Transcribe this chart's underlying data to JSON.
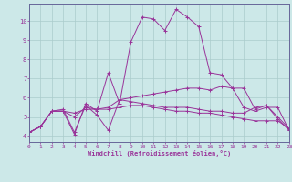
{
  "xlabel": "Windchill (Refroidissement éolien,°C)",
  "background_color": "#cce8e8",
  "grid_color": "#aacccc",
  "line_color": "#993399",
  "spine_color": "#666699",
  "xlim": [
    0,
    23
  ],
  "ylim": [
    3.7,
    10.9
  ],
  "xticks": [
    0,
    1,
    2,
    3,
    4,
    5,
    6,
    7,
    8,
    9,
    10,
    11,
    12,
    13,
    14,
    15,
    16,
    17,
    18,
    19,
    20,
    21,
    22,
    23
  ],
  "yticks": [
    4,
    5,
    6,
    7,
    8,
    9,
    10
  ],
  "lines": [
    {
      "x": [
        0,
        1,
        2,
        3,
        4,
        5,
        6,
        7,
        8,
        9,
        10,
        11,
        12,
        13,
        14,
        15,
        16,
        17,
        18,
        19,
        20,
        21,
        22,
        23
      ],
      "y": [
        4.2,
        4.5,
        5.3,
        5.3,
        4.1,
        5.7,
        5.3,
        7.3,
        5.7,
        8.9,
        10.2,
        10.1,
        9.5,
        10.6,
        10.2,
        9.7,
        7.3,
        7.2,
        6.5,
        6.5,
        5.4,
        5.6,
        4.9,
        4.3
      ]
    },
    {
      "x": [
        0,
        1,
        2,
        3,
        4,
        5,
        6,
        7,
        8,
        9,
        10,
        11,
        12,
        13,
        14,
        15,
        16,
        17,
        18,
        19,
        20,
        21,
        22,
        23
      ],
      "y": [
        4.2,
        4.5,
        5.3,
        5.3,
        5.2,
        5.4,
        5.4,
        5.5,
        5.9,
        6.0,
        6.1,
        6.2,
        6.3,
        6.4,
        6.5,
        6.5,
        6.4,
        6.6,
        6.5,
        5.5,
        5.3,
        5.5,
        5.5,
        4.3
      ]
    },
    {
      "x": [
        0,
        1,
        2,
        3,
        4,
        5,
        6,
        7,
        8,
        9,
        10,
        11,
        12,
        13,
        14,
        15,
        16,
        17,
        18,
        19,
        20,
        21,
        22,
        23
      ],
      "y": [
        4.2,
        4.5,
        5.3,
        5.3,
        5.0,
        5.5,
        5.4,
        5.4,
        5.5,
        5.6,
        5.6,
        5.5,
        5.4,
        5.3,
        5.3,
        5.2,
        5.2,
        5.1,
        5.0,
        4.9,
        4.8,
        4.8,
        4.8,
        4.4
      ]
    },
    {
      "x": [
        0,
        1,
        2,
        3,
        4,
        5,
        6,
        7,
        8,
        9,
        10,
        11,
        12,
        13,
        14,
        15,
        16,
        17,
        18,
        19,
        20,
        21,
        22,
        23
      ],
      "y": [
        4.2,
        4.5,
        5.3,
        5.4,
        4.2,
        5.6,
        5.1,
        4.3,
        5.9,
        5.8,
        5.7,
        5.6,
        5.5,
        5.5,
        5.5,
        5.4,
        5.3,
        5.3,
        5.2,
        5.2,
        5.5,
        5.6,
        5.0,
        4.4
      ]
    }
  ]
}
